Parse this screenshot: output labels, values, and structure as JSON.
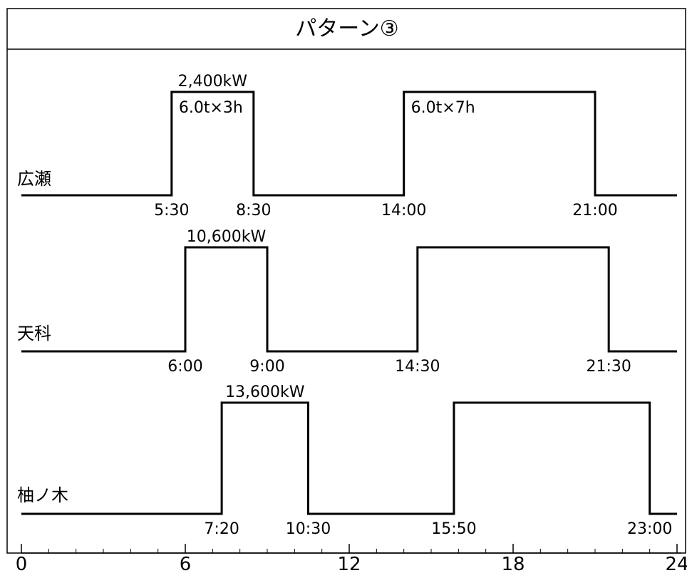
{
  "chart_data": {
    "type": "line",
    "title": "パターン③",
    "xlabel": "",
    "ylabel": "",
    "xlim": [
      0,
      24
    ],
    "x_ticks": [
      "0",
      "6",
      "12",
      "18",
      "24"
    ],
    "series": [
      {
        "name": "広瀬",
        "segments": [
          [
            5.5,
            8.5
          ],
          [
            14.0,
            21.0
          ]
        ],
        "time_labels": [
          "5:30",
          "8:30",
          "14:00",
          "21:00"
        ],
        "annotations": [
          "2,400kW",
          "6.0t×3h",
          "6.0t×7h"
        ]
      },
      {
        "name": "天科",
        "segments": [
          [
            6.0,
            9.0
          ],
          [
            14.5,
            21.5
          ]
        ],
        "time_labels": [
          "6:00",
          "9:00",
          "14:30",
          "21:30"
        ],
        "annotations": [
          "10,600kW"
        ]
      },
      {
        "name": "柚ノ木",
        "segments": [
          [
            7.3333,
            10.5
          ],
          [
            15.8333,
            23.0
          ]
        ],
        "time_labels": [
          "7:20",
          "10:30",
          "15:50",
          "23:00"
        ],
        "annotations": [
          "13,600kW"
        ]
      }
    ]
  }
}
